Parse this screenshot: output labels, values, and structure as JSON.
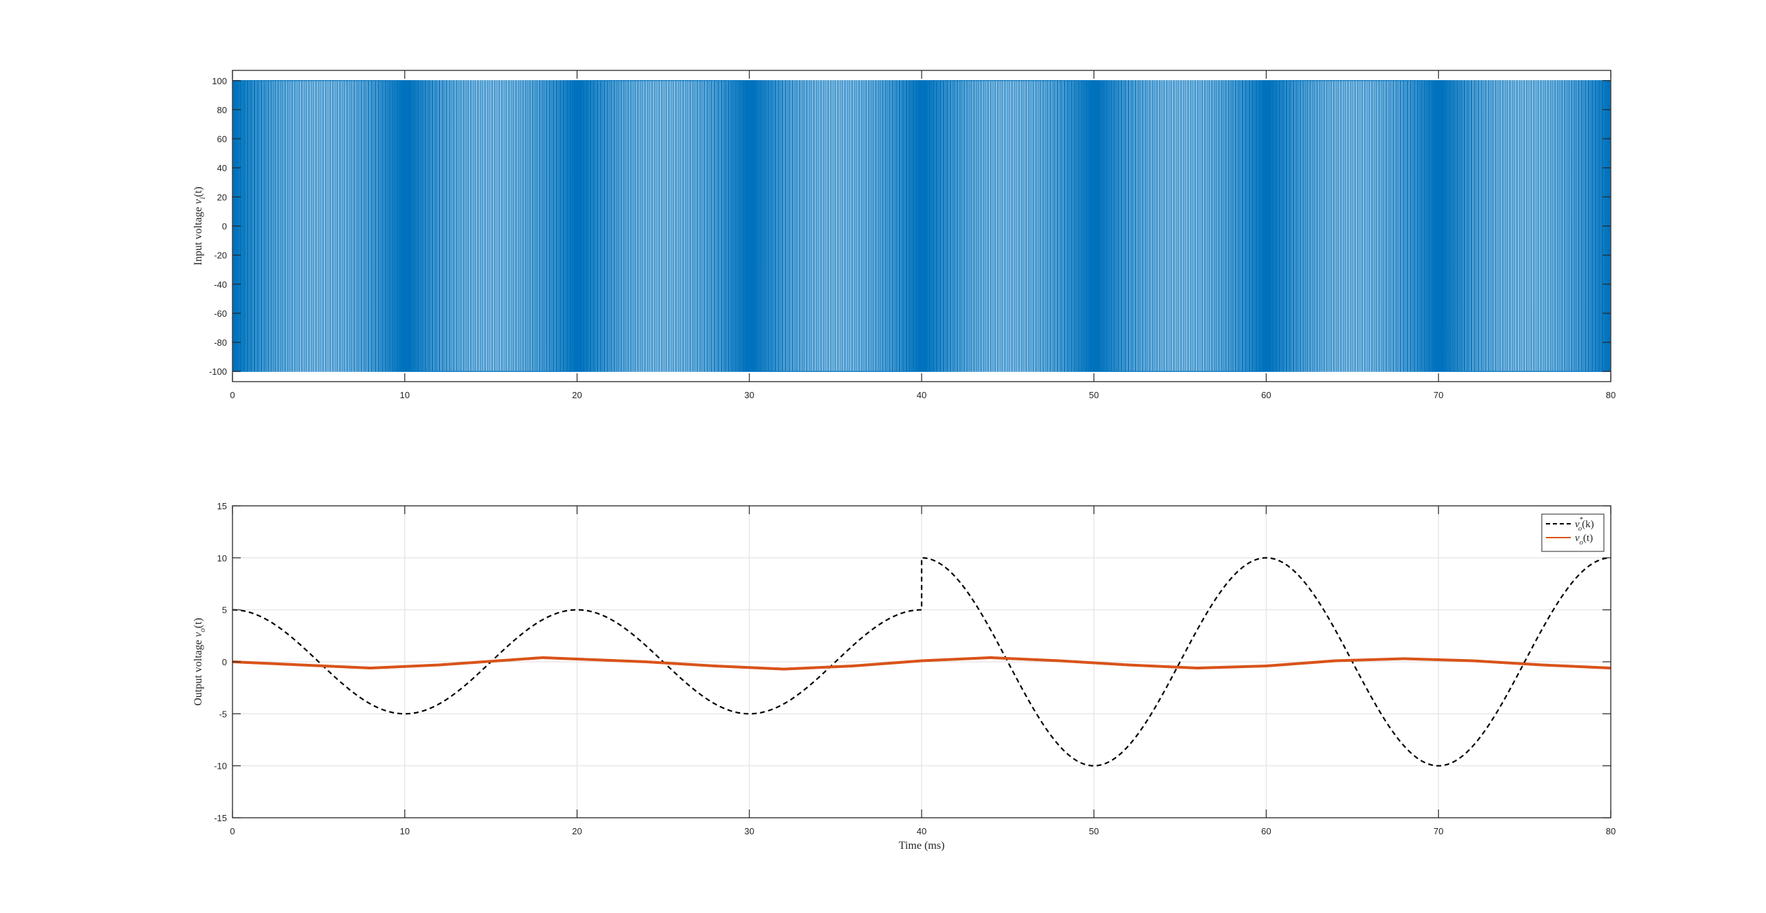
{
  "figure": {
    "background": "#ffffff"
  },
  "chart_data": [
    {
      "type": "line",
      "title": "",
      "xlabel": "",
      "ylabel": "Input voltage v_i(t)",
      "xlim": [
        0,
        80
      ],
      "ylim": [
        -107,
        107
      ],
      "x_ticks": [
        "0",
        "10",
        "20",
        "30",
        "40",
        "50",
        "60",
        "70",
        "80"
      ],
      "y_ticks": [
        "-100",
        "-80",
        "-60",
        "-40",
        "-20",
        "0",
        "20",
        "40",
        "60",
        "80",
        "100"
      ],
      "grid": false,
      "series": [
        {
          "style": "PWM square wave switching between -100 and 100",
          "color": "#0072bd",
          "high": 100,
          "low": -100,
          "switching_period_ms": 0.1
        }
      ]
    },
    {
      "type": "line",
      "title": "",
      "xlabel": "Time (ms)",
      "ylabel": "Output voltage v_o(t)",
      "xlim": [
        0,
        80
      ],
      "ylim": [
        -15,
        15
      ],
      "x_ticks": [
        "0",
        "10",
        "20",
        "30",
        "40",
        "50",
        "60",
        "70",
        "80"
      ],
      "y_ticks": [
        "-15",
        "-10",
        "-5",
        "0",
        "5",
        "10",
        "15"
      ],
      "grid": true,
      "legend_position": "top-right",
      "series": [
        {
          "name": "v_o^*(k)",
          "color": "#000000",
          "dash": "dashed",
          "segments": [
            {
              "x_range": [
                0,
                40
              ],
              "amplitude": 5,
              "period_ms": 20,
              "shape": "cosine"
            },
            {
              "x_range": [
                40,
                80
              ],
              "amplitude": 10,
              "period_ms": 20,
              "shape": "cosine"
            }
          ],
          "x": [
            0,
            5,
            10,
            15,
            20,
            25,
            30,
            35,
            40,
            40,
            45,
            50,
            55,
            60,
            65,
            70,
            75,
            80
          ],
          "y": [
            5,
            0,
            -5,
            0,
            5,
            0,
            -5,
            0,
            5,
            10,
            0,
            -10,
            0,
            10,
            0,
            -10,
            0,
            10
          ]
        },
        {
          "name": "v_o(t)",
          "color": "#d95319",
          "dash": "solid",
          "x": [
            0,
            4,
            8,
            12,
            18,
            24,
            28,
            32,
            36,
            40,
            44,
            48,
            52,
            56,
            60,
            64,
            68,
            72,
            76,
            80
          ],
          "y": [
            0,
            -0.3,
            -0.6,
            -0.3,
            0.4,
            0,
            -0.4,
            -0.7,
            -0.4,
            0.1,
            0.4,
            0.1,
            -0.3,
            -0.6,
            -0.4,
            0.1,
            0.3,
            0.1,
            -0.3,
            -0.6
          ],
          "ripple_amplitude": 0.12
        }
      ]
    }
  ]
}
